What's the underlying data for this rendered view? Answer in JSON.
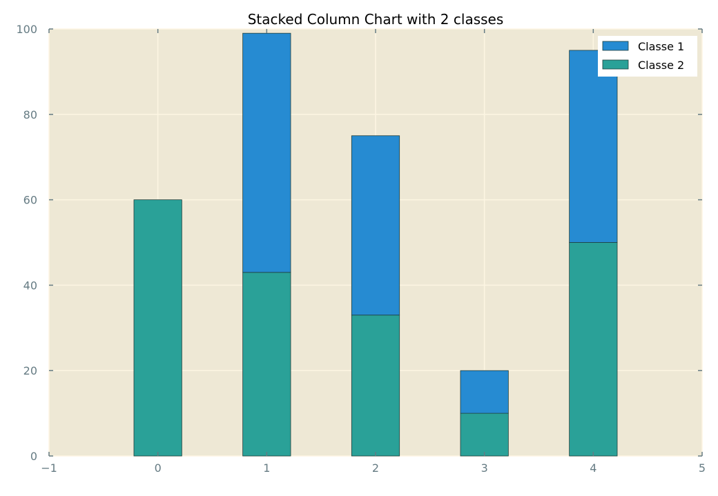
{
  "chart_data": {
    "type": "bar",
    "stacked": true,
    "title": "Stacked Column Chart with 2 classes",
    "xlabel": "",
    "ylabel": "",
    "categories": [
      0,
      1,
      2,
      3,
      4
    ],
    "series": [
      {
        "name": "Classe 2",
        "values": [
          60,
          43,
          33,
          10,
          50
        ],
        "color": "#2aa198"
      },
      {
        "name": "Classe 1",
        "values": [
          0,
          56,
          42,
          10,
          45
        ],
        "color": "#268bd2"
      }
    ],
    "xlim": [
      -1,
      5
    ],
    "ylim": [
      0,
      100
    ],
    "xticks": [
      -1,
      0,
      1,
      2,
      3,
      4,
      5
    ],
    "xtick_labels": [
      "−1",
      "0",
      "1",
      "2",
      "3",
      "4",
      "5"
    ],
    "yticks": [
      0,
      20,
      40,
      60,
      80,
      100
    ],
    "ytick_labels": [
      "0",
      "20",
      "40",
      "60",
      "80",
      "100"
    ],
    "grid": true,
    "legend_position": "top-right",
    "legend": [
      {
        "label": "Classe 1",
        "color": "#268bd2"
      },
      {
        "label": "Classe 2",
        "color": "#2aa198"
      }
    ],
    "colors": {
      "plot_background": "#eee8d5",
      "grid": "#fdf6e3",
      "tick_label": "#657b83"
    }
  }
}
